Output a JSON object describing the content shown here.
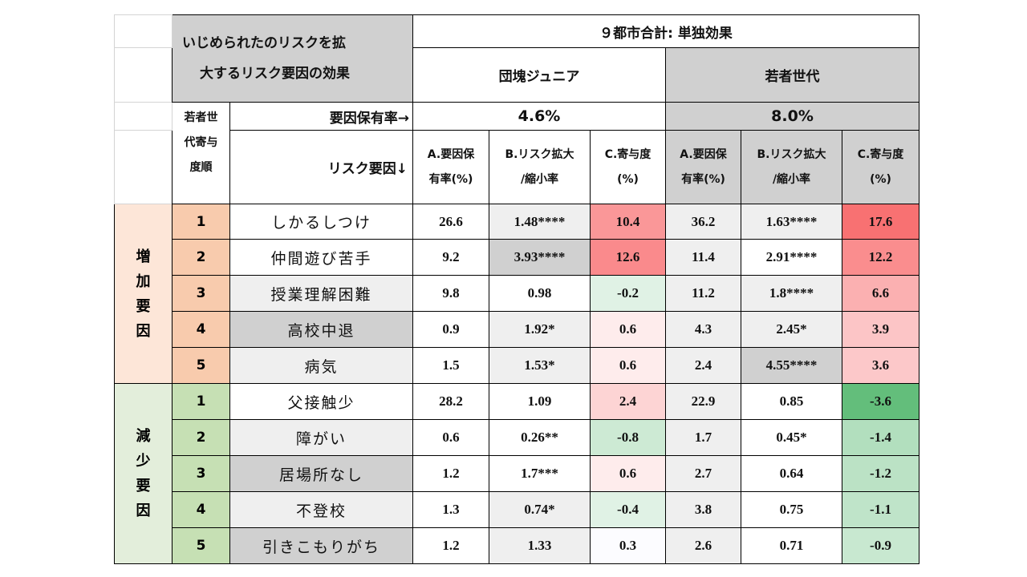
{
  "corner_title": [
    "いじめられたのリスクを拡",
    "大するリスク要因の効果"
  ],
  "top_header": "９都市合計: 単独効果",
  "group1": {
    "name": "団塊ジュニア",
    "rate": "4.6%"
  },
  "group2": {
    "name": "若者世代",
    "rate": "8.0%"
  },
  "rank_header": [
    "若者世",
    "代寄与",
    "度順"
  ],
  "prevalence_label": "要因保有率→",
  "factor_label": "リスク要因↓",
  "col_headers": {
    "a": [
      "A.要因保",
      "有率(%)"
    ],
    "b": [
      "B.リスク拡大",
      "/縮小率"
    ],
    "c": [
      "C.寄与度",
      "(%)"
    ]
  },
  "increase_group": [
    "増",
    "加",
    "要",
    "因"
  ],
  "decrease_group": [
    "減",
    "少",
    "要",
    "因"
  ],
  "rows": [
    {
      "rank": "1",
      "factor": "しかるしつけ",
      "a1": "26.6",
      "b1": "1.48****",
      "c1": "10.4",
      "a2": "36.2",
      "b2": "1.63****",
      "c2": "17.6"
    },
    {
      "rank": "2",
      "factor": "仲間遊び苦手",
      "a1": "9.2",
      "b1": "3.93****",
      "c1": "12.6",
      "a2": "11.4",
      "b2": "2.91****",
      "c2": "12.2"
    },
    {
      "rank": "3",
      "factor": "授業理解困難",
      "a1": "9.8",
      "b1": "0.98",
      "c1": "-0.2",
      "a2": "11.2",
      "b2": "1.8****",
      "c2": "6.6"
    },
    {
      "rank": "4",
      "factor": "高校中退",
      "a1": "0.9",
      "b1": "1.92*",
      "c1": "0.6",
      "a2": "4.3",
      "b2": "2.45*",
      "c2": "3.9"
    },
    {
      "rank": "5",
      "factor": "病気",
      "a1": "1.5",
      "b1": "1.53*",
      "c1": "0.6",
      "a2": "2.4",
      "b2": "4.55****",
      "c2": "3.6"
    },
    {
      "rank": "1",
      "factor": "父接触少",
      "a1": "28.2",
      "b1": "1.09",
      "c1": "2.4",
      "a2": "22.9",
      "b2": "0.85",
      "c2": "-3.6"
    },
    {
      "rank": "2",
      "factor": "障がい",
      "a1": "0.6",
      "b1": "0.26**",
      "c1": "-0.8",
      "a2": "1.7",
      "b2": "0.45*",
      "c2": "-1.4"
    },
    {
      "rank": "3",
      "factor": "居場所なし",
      "a1": "1.2",
      "b1": "1.7***",
      "c1": "0.6",
      "a2": "2.7",
      "b2": "0.64",
      "c2": "-1.2"
    },
    {
      "rank": "4",
      "factor": "不登校",
      "a1": "1.3",
      "b1": "0.74*",
      "c1": "-0.4",
      "a2": "3.8",
      "b2": "0.75",
      "c2": "-1.1"
    },
    {
      "rank": "5",
      "factor": "引きこもりがち",
      "a1": "1.2",
      "b1": "1.33",
      "c1": "0.3",
      "a2": "2.6",
      "b2": "0.71",
      "c2": "-0.9"
    }
  ],
  "colors": {
    "header_gray": "#d0d0d0",
    "increase_group_bg": "#fde6d8",
    "increase_rank_bg": "#f8cbad",
    "decrease_group_bg": "#e3eedb",
    "decrease_rank_bg": "#c6e0b4",
    "contribution_red_max": "#f8696b",
    "contribution_green_max": "#63be7b"
  }
}
